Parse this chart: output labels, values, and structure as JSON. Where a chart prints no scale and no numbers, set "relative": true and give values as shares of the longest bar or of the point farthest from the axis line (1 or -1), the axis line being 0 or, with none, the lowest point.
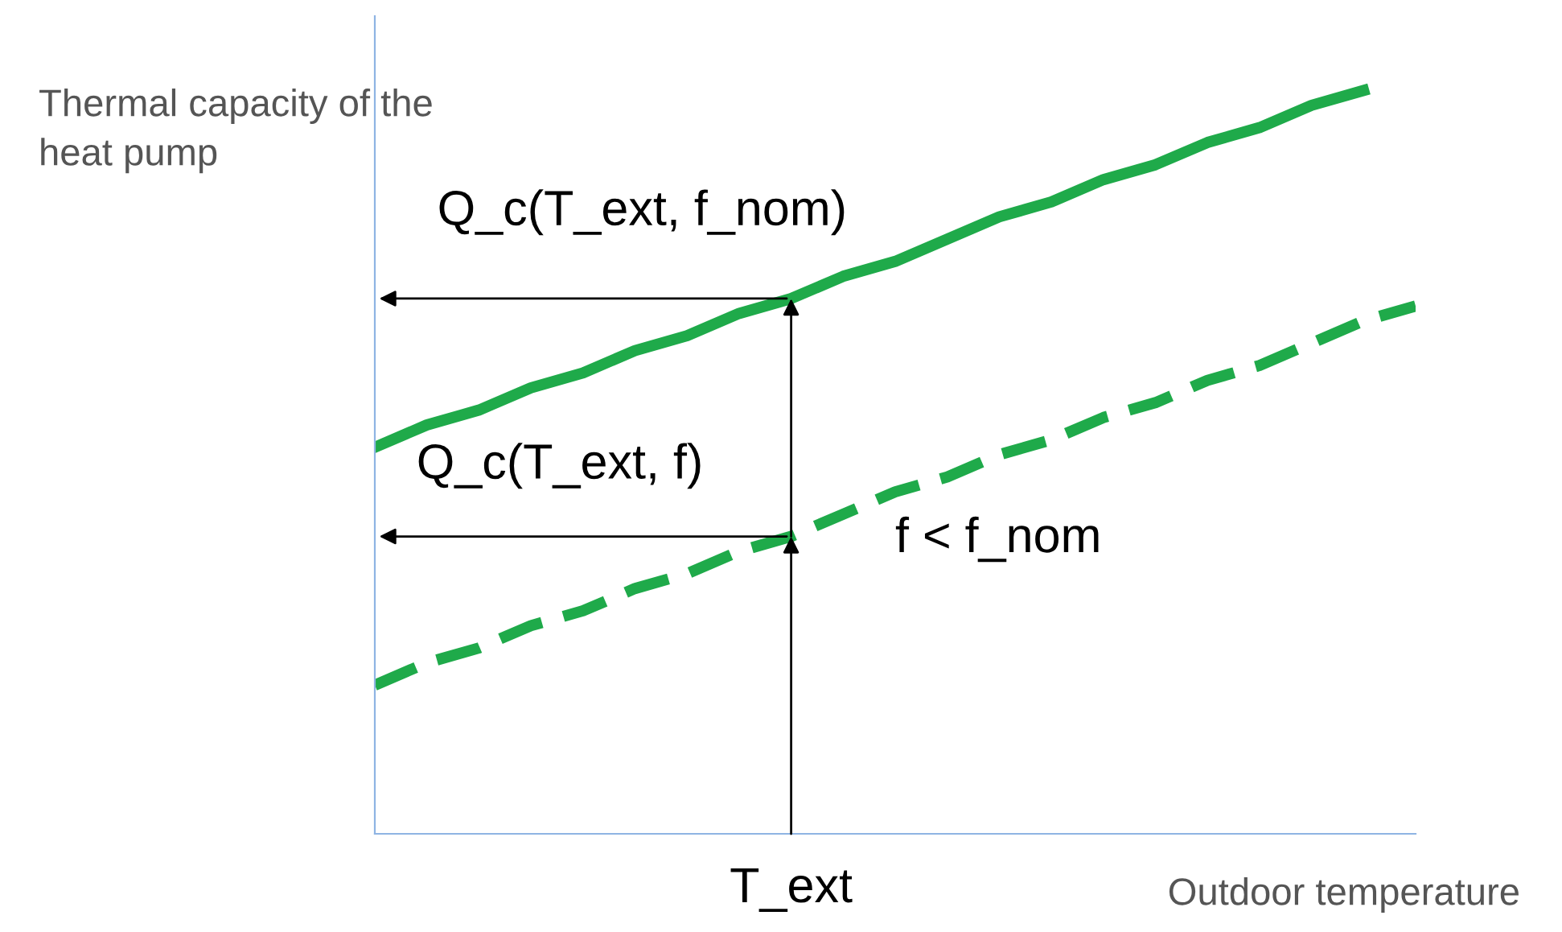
{
  "chart_data": {
    "type": "line",
    "relative": true,
    "xlabel": "Outdoor temperature",
    "ylabel": "Thermal capacity of the heat pump",
    "categories": [
      null,
      null,
      null,
      null,
      null,
      null,
      null,
      null,
      null,
      null,
      null,
      null,
      null,
      null,
      null,
      null,
      null,
      null,
      null,
      null,
      null
    ],
    "series": [
      {
        "color": "#1faa4a",
        "line_style": "solid",
        "values": [
          0.52,
          0.55,
          0.57,
          0.6,
          0.62,
          0.65,
          0.67,
          0.7,
          0.72,
          0.75,
          0.77,
          0.8,
          0.83,
          0.85,
          0.88,
          0.9,
          0.93,
          0.95,
          0.98,
          1.0,
          null
        ]
      },
      {
        "name": "f < f_nom",
        "color": "#1faa4a",
        "line_style": "dashed",
        "values": [
          0.2,
          0.23,
          0.25,
          0.28,
          0.3,
          0.33,
          0.35,
          0.38,
          0.4,
          0.43,
          0.46,
          0.48,
          0.51,
          0.53,
          0.56,
          0.58,
          0.61,
          0.63,
          0.66,
          0.69,
          0.71
        ]
      }
    ],
    "annotations": [
      "Q_c(T_ext, f_nom)",
      "Q_c(T_ext, f)",
      "T_ext"
    ],
    "legend": false,
    "marker": "none"
  }
}
